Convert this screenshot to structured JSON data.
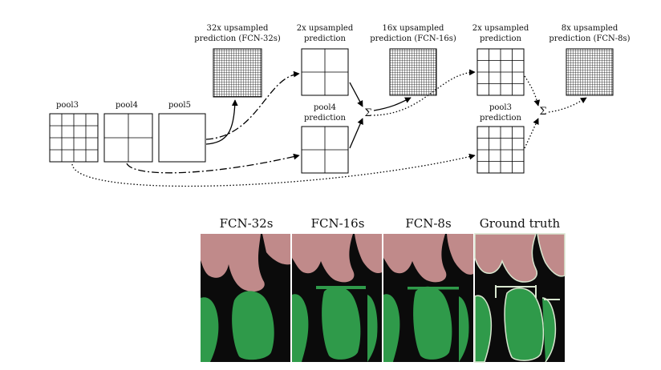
{
  "diagram": {
    "pool_labels": [
      "pool3",
      "pool4",
      "pool5"
    ],
    "pred_labels": {
      "fcn32": [
        "32x upsampled",
        "prediction (FCN-32s)"
      ],
      "up2_a": [
        "2x upsampled",
        "prediction"
      ],
      "pool4_pred": [
        "pool4",
        "prediction"
      ],
      "fcn16": [
        "16x upsampled",
        "prediction (FCN-16s)"
      ],
      "up2_b": [
        "2x upsampled",
        "prediction"
      ],
      "pool3_pred": [
        "pool3",
        "prediction"
      ],
      "fcn8": [
        "8x upsampled",
        "prediction (FCN-8s)"
      ]
    },
    "sum_symbol": "Σ"
  },
  "results": {
    "columns": [
      "FCN-32s",
      "FCN-16s",
      "FCN-8s",
      "Ground truth"
    ],
    "colors": {
      "background": "#0b0b0b",
      "person": "#c08a8a",
      "object": "#2f9a4a",
      "border": "#d8e6cf"
    }
  }
}
